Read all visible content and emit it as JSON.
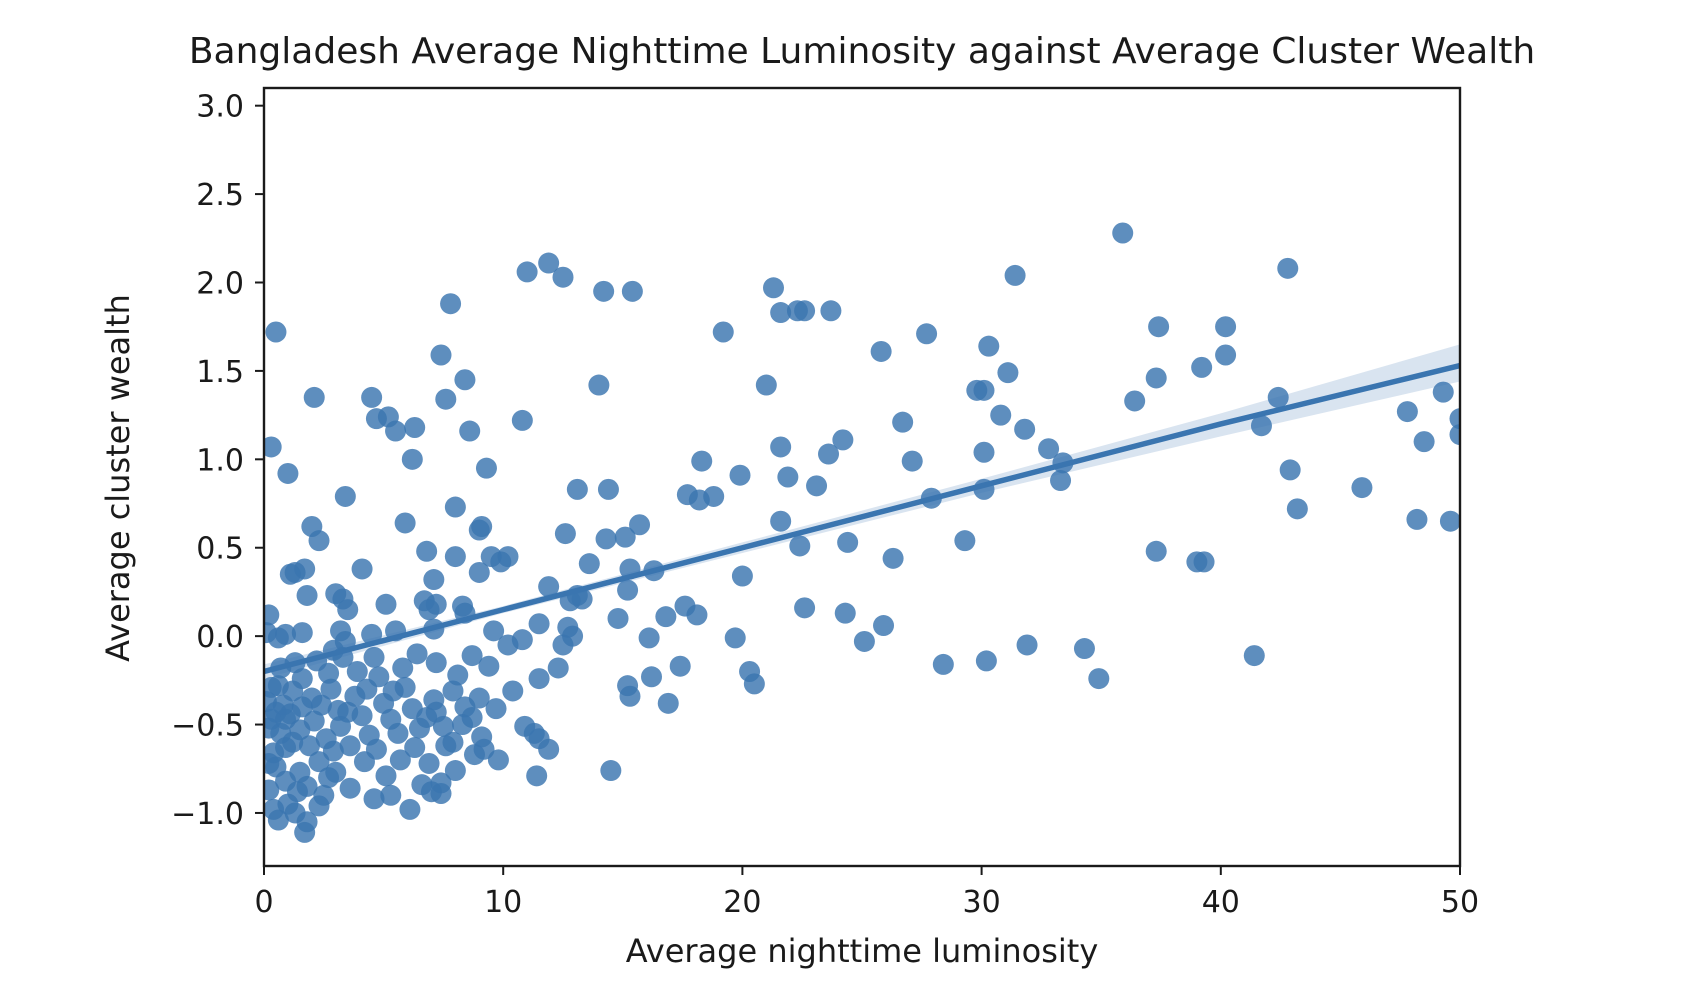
{
  "chart_data": {
    "type": "scatter",
    "title": "Bangladesh Average Nighttime Luminosity against Average Cluster Wealth",
    "xlabel": "Average nighttime luminosity",
    "ylabel": "Average cluster wealth",
    "xlim": [
      0,
      50
    ],
    "ylim": [
      -1.3,
      3.1
    ],
    "x_ticks": [
      0,
      10,
      20,
      30,
      40,
      50
    ],
    "x_tick_labels": [
      "0",
      "10",
      "20",
      "30",
      "40",
      "50"
    ],
    "y_ticks": [
      -1.0,
      -0.5,
      0.0,
      0.5,
      1.0,
      1.5,
      2.0,
      2.5,
      3.0
    ],
    "y_tick_labels": [
      "−1.0",
      "−0.5",
      "0.0",
      "0.5",
      "1.0",
      "1.5",
      "2.0",
      "2.5",
      "3.0"
    ],
    "grid": false,
    "legend": false,
    "colors": {
      "points": "#3a75b0",
      "line": "#3a75b0",
      "band": "#c9d9ea"
    },
    "regression": {
      "x": [
        0,
        10,
        20,
        30,
        40,
        50
      ],
      "y": [
        -0.2,
        0.15,
        0.5,
        0.85,
        1.2,
        1.53
      ],
      "ci_low": [
        -0.24,
        0.13,
        0.47,
        0.81,
        1.13,
        1.44
      ],
      "ci_high": [
        -0.16,
        0.17,
        0.53,
        0.89,
        1.26,
        1.65
      ]
    },
    "series": [
      {
        "points": [
          [
            0.5,
            1.72
          ],
          [
            11,
            2.06
          ],
          [
            11.9,
            2.11
          ],
          [
            12.5,
            2.03
          ],
          [
            14.2,
            1.95
          ],
          [
            15.4,
            1.95
          ],
          [
            21.3,
            1.97
          ],
          [
            21.6,
            1.83
          ],
          [
            22.3,
            1.84
          ],
          [
            22.6,
            1.84
          ],
          [
            23.7,
            1.84
          ],
          [
            19.2,
            1.72
          ],
          [
            25.8,
            1.61
          ],
          [
            27.7,
            1.71
          ],
          [
            30.3,
            1.64
          ],
          [
            31.4,
            2.04
          ],
          [
            35.9,
            2.28
          ],
          [
            37.4,
            1.75
          ],
          [
            40.2,
            1.75
          ],
          [
            42.8,
            2.08
          ],
          [
            7.4,
            1.59
          ],
          [
            7.8,
            1.88
          ],
          [
            8.4,
            1.45
          ],
          [
            7.6,
            1.34
          ],
          [
            4.5,
            1.35
          ],
          [
            2.1,
            1.35
          ],
          [
            4.7,
            1.23
          ],
          [
            5.2,
            1.24
          ],
          [
            5.5,
            1.16
          ],
          [
            6.3,
            1.18
          ],
          [
            8.6,
            1.16
          ],
          [
            6.2,
            1.0
          ],
          [
            9.3,
            0.95
          ],
          [
            10.8,
            1.22
          ],
          [
            14,
            1.42
          ],
          [
            21,
            1.42
          ],
          [
            29.8,
            1.39
          ],
          [
            30.1,
            1.39
          ],
          [
            31.1,
            1.49
          ],
          [
            39.2,
            1.52
          ],
          [
            40.2,
            1.59
          ],
          [
            37.3,
            1.46
          ],
          [
            36.4,
            1.33
          ],
          [
            42.4,
            1.35
          ],
          [
            41.7,
            1.19
          ],
          [
            47.8,
            1.27
          ],
          [
            49.3,
            1.38
          ],
          [
            50,
            1.23
          ],
          [
            50,
            1.14
          ],
          [
            48.5,
            1.1
          ],
          [
            30.8,
            1.25
          ],
          [
            31.8,
            1.17
          ],
          [
            32.8,
            1.06
          ],
          [
            33.4,
            0.98
          ],
          [
            33.3,
            0.88
          ],
          [
            26.7,
            1.21
          ],
          [
            27.1,
            0.99
          ],
          [
            24.2,
            1.11
          ],
          [
            23.6,
            1.03
          ],
          [
            21.6,
            1.07
          ],
          [
            21.9,
            0.9
          ],
          [
            23.1,
            0.85
          ],
          [
            18.3,
            0.99
          ],
          [
            19.9,
            0.91
          ],
          [
            17.7,
            0.8
          ],
          [
            18.2,
            0.77
          ],
          [
            18.8,
            0.79
          ],
          [
            13.1,
            0.83
          ],
          [
            14.4,
            0.83
          ],
          [
            15.7,
            0.63
          ],
          [
            15.1,
            0.56
          ],
          [
            14.3,
            0.55
          ],
          [
            12.6,
            0.58
          ],
          [
            13.6,
            0.41
          ],
          [
            15.3,
            0.38
          ],
          [
            16.3,
            0.37
          ],
          [
            15.2,
            0.26
          ],
          [
            13.1,
            0.23
          ],
          [
            13.3,
            0.21
          ],
          [
            12.8,
            0.2
          ],
          [
            11.9,
            0.28
          ],
          [
            20,
            0.34
          ],
          [
            21.6,
            0.65
          ],
          [
            22.4,
            0.51
          ],
          [
            24.4,
            0.53
          ],
          [
            26.3,
            0.44
          ],
          [
            27.9,
            0.78
          ],
          [
            30.1,
            0.83
          ],
          [
            30.1,
            1.04
          ],
          [
            29.3,
            0.54
          ],
          [
            37.3,
            0.48
          ],
          [
            39,
            0.42
          ],
          [
            39.3,
            0.42
          ],
          [
            42.9,
            0.94
          ],
          [
            43.2,
            0.72
          ],
          [
            45.9,
            0.84
          ],
          [
            48.2,
            0.66
          ],
          [
            49.6,
            0.65
          ],
          [
            0.3,
            1.07
          ],
          [
            1,
            0.92
          ],
          [
            3.4,
            0.79
          ],
          [
            8,
            0.73
          ],
          [
            5.9,
            0.64
          ],
          [
            2,
            0.62
          ],
          [
            2.3,
            0.54
          ],
          [
            9,
            0.6
          ],
          [
            9.1,
            0.62
          ],
          [
            6.8,
            0.48
          ],
          [
            8,
            0.45
          ],
          [
            9.5,
            0.45
          ],
          [
            9.9,
            0.42
          ],
          [
            10.2,
            0.45
          ],
          [
            9,
            0.36
          ],
          [
            4.1,
            0.38
          ],
          [
            1.7,
            0.38
          ],
          [
            1.3,
            0.36
          ],
          [
            1.1,
            0.35
          ],
          [
            7.1,
            0.32
          ],
          [
            3,
            0.24
          ],
          [
            1.8,
            0.23
          ],
          [
            3.3,
            0.21
          ],
          [
            3.5,
            0.15
          ],
          [
            5.1,
            0.18
          ],
          [
            6.7,
            0.2
          ],
          [
            7.2,
            0.18
          ],
          [
            8.3,
            0.17
          ],
          [
            6.9,
            0.15
          ],
          [
            8.4,
            0.13
          ],
          [
            9.6,
            0.03
          ],
          [
            7.1,
            0.04
          ],
          [
            5.5,
            0.03
          ],
          [
            4.5,
            0.01
          ],
          [
            3.2,
            0.03
          ],
          [
            1.6,
            0.02
          ],
          [
            0.9,
            0.01
          ],
          [
            0.6,
            -0.01
          ],
          [
            0.2,
            0.12
          ],
          [
            0.1,
            0.02
          ],
          [
            10.2,
            -0.05
          ],
          [
            10.8,
            -0.02
          ],
          [
            11.5,
            0.07
          ],
          [
            12.7,
            0.05
          ],
          [
            12.9,
            0.0
          ],
          [
            12.5,
            -0.05
          ],
          [
            14.8,
            0.1
          ],
          [
            16.1,
            -0.01
          ],
          [
            16.8,
            0.11
          ],
          [
            17.6,
            0.17
          ],
          [
            18.1,
            0.12
          ],
          [
            19.7,
            -0.01
          ],
          [
            24.3,
            0.13
          ],
          [
            25.9,
            0.06
          ],
          [
            25.1,
            -0.03
          ],
          [
            22.6,
            0.16
          ],
          [
            28.4,
            -0.16
          ],
          [
            30.2,
            -0.14
          ],
          [
            31.9,
            -0.05
          ],
          [
            34.3,
            -0.07
          ],
          [
            34.9,
            -0.24
          ],
          [
            41.4,
            -0.11
          ],
          [
            12.3,
            -0.18
          ],
          [
            11.5,
            -0.24
          ],
          [
            15.2,
            -0.28
          ],
          [
            15.3,
            -0.34
          ],
          [
            16.2,
            -0.23
          ],
          [
            17.4,
            -0.17
          ],
          [
            16.9,
            -0.38
          ],
          [
            20.3,
            -0.2
          ],
          [
            20.5,
            -0.27
          ],
          [
            10.4,
            -0.31
          ],
          [
            9,
            -0.35
          ],
          [
            9.7,
            -0.41
          ],
          [
            8.7,
            -0.46
          ],
          [
            10.9,
            -0.51
          ],
          [
            11.3,
            -0.55
          ],
          [
            11.5,
            -0.58
          ],
          [
            11.9,
            -0.64
          ],
          [
            14.5,
            -0.76
          ],
          [
            11.4,
            -0.79
          ],
          [
            9.8,
            -0.7
          ],
          [
            9.1,
            -0.57
          ],
          [
            9.2,
            -0.64
          ],
          [
            8.8,
            -0.67
          ],
          [
            7.9,
            -0.6
          ],
          [
            7.5,
            -0.51
          ],
          [
            7.2,
            -0.43
          ],
          [
            7.9,
            -0.31
          ],
          [
            8.4,
            -0.4
          ],
          [
            8,
            -0.76
          ],
          [
            7.4,
            -0.83
          ],
          [
            7,
            -0.88
          ],
          [
            7.4,
            -0.89
          ],
          [
            6.6,
            -0.84
          ],
          [
            6.1,
            -0.98
          ],
          [
            5.3,
            -0.9
          ],
          [
            4.6,
            -0.92
          ],
          [
            3.6,
            -0.86
          ],
          [
            2.3,
            -0.96
          ],
          [
            1.7,
            -1.11
          ],
          [
            1.8,
            -1.05
          ],
          [
            1.3,
            -1.0
          ],
          [
            0.6,
            -1.04
          ],
          [
            0.4,
            -0.98
          ],
          [
            0.2,
            -0.87
          ],
          [
            0.5,
            -0.74
          ],
          [
            0.9,
            -0.63
          ],
          [
            0.7,
            -0.55
          ],
          [
            0.3,
            -0.47
          ],
          [
            0.8,
            -0.39
          ],
          [
            1.2,
            -0.31
          ],
          [
            1.6,
            -0.24
          ],
          [
            1.1,
            -0.44
          ],
          [
            1.5,
            -0.53
          ],
          [
            1.9,
            -0.62
          ],
          [
            2.3,
            -0.71
          ],
          [
            2.7,
            -0.8
          ],
          [
            1.4,
            -0.88
          ],
          [
            0.9,
            -0.82
          ],
          [
            0.4,
            -0.66
          ],
          [
            0.2,
            -0.52
          ],
          [
            0.1,
            -0.37
          ],
          [
            0.3,
            -0.29
          ],
          [
            0.6,
            -0.28
          ],
          [
            0.9,
            -0.47
          ],
          [
            1.2,
            -0.6
          ],
          [
            1.5,
            -0.77
          ],
          [
            1.8,
            -0.85
          ],
          [
            2.1,
            -0.48
          ],
          [
            2.4,
            -0.39
          ],
          [
            2.6,
            -0.58
          ],
          [
            2.9,
            -0.65
          ],
          [
            3.2,
            -0.51
          ],
          [
            3.5,
            -0.43
          ],
          [
            3.8,
            -0.34
          ],
          [
            4.1,
            -0.45
          ],
          [
            4.4,
            -0.56
          ],
          [
            4.7,
            -0.64
          ],
          [
            5,
            -0.38
          ],
          [
            5.3,
            -0.47
          ],
          [
            5.6,
            -0.55
          ],
          [
            5.9,
            -0.29
          ],
          [
            6.2,
            -0.41
          ],
          [
            6.5,
            -0.52
          ],
          [
            6.8,
            -0.46
          ],
          [
            7.1,
            -0.36
          ],
          [
            4.8,
            -0.23
          ],
          [
            5.4,
            -0.31
          ],
          [
            3.9,
            -0.2
          ],
          [
            3.3,
            -0.12
          ],
          [
            2.7,
            -0.21
          ],
          [
            2.2,
            -0.14
          ],
          [
            2.9,
            -0.08
          ],
          [
            3.4,
            -0.03
          ],
          [
            4.6,
            -0.12
          ],
          [
            5.8,
            -0.18
          ],
          [
            6.4,
            -0.1
          ],
          [
            7.2,
            -0.15
          ],
          [
            8.1,
            -0.22
          ],
          [
            8.7,
            -0.11
          ],
          [
            9.4,
            -0.17
          ],
          [
            1.6,
            -0.4
          ],
          [
            2.8,
            -0.3
          ],
          [
            3.6,
            -0.62
          ],
          [
            4.2,
            -0.71
          ],
          [
            5.1,
            -0.79
          ],
          [
            5.7,
            -0.7
          ],
          [
            6.3,
            -0.63
          ],
          [
            6.9,
            -0.72
          ],
          [
            7.6,
            -0.62
          ],
          [
            8.3,
            -0.5
          ],
          [
            2.5,
            -0.9
          ],
          [
            3,
            -0.77
          ],
          [
            1,
            -0.95
          ],
          [
            0.7,
            -0.18
          ],
          [
            1.3,
            -0.15
          ],
          [
            0.2,
            -0.72
          ],
          [
            0.5,
            -0.43
          ],
          [
            2,
            -0.35
          ],
          [
            3.1,
            -0.42
          ],
          [
            4.3,
            -0.3
          ]
        ]
      }
    ]
  }
}
